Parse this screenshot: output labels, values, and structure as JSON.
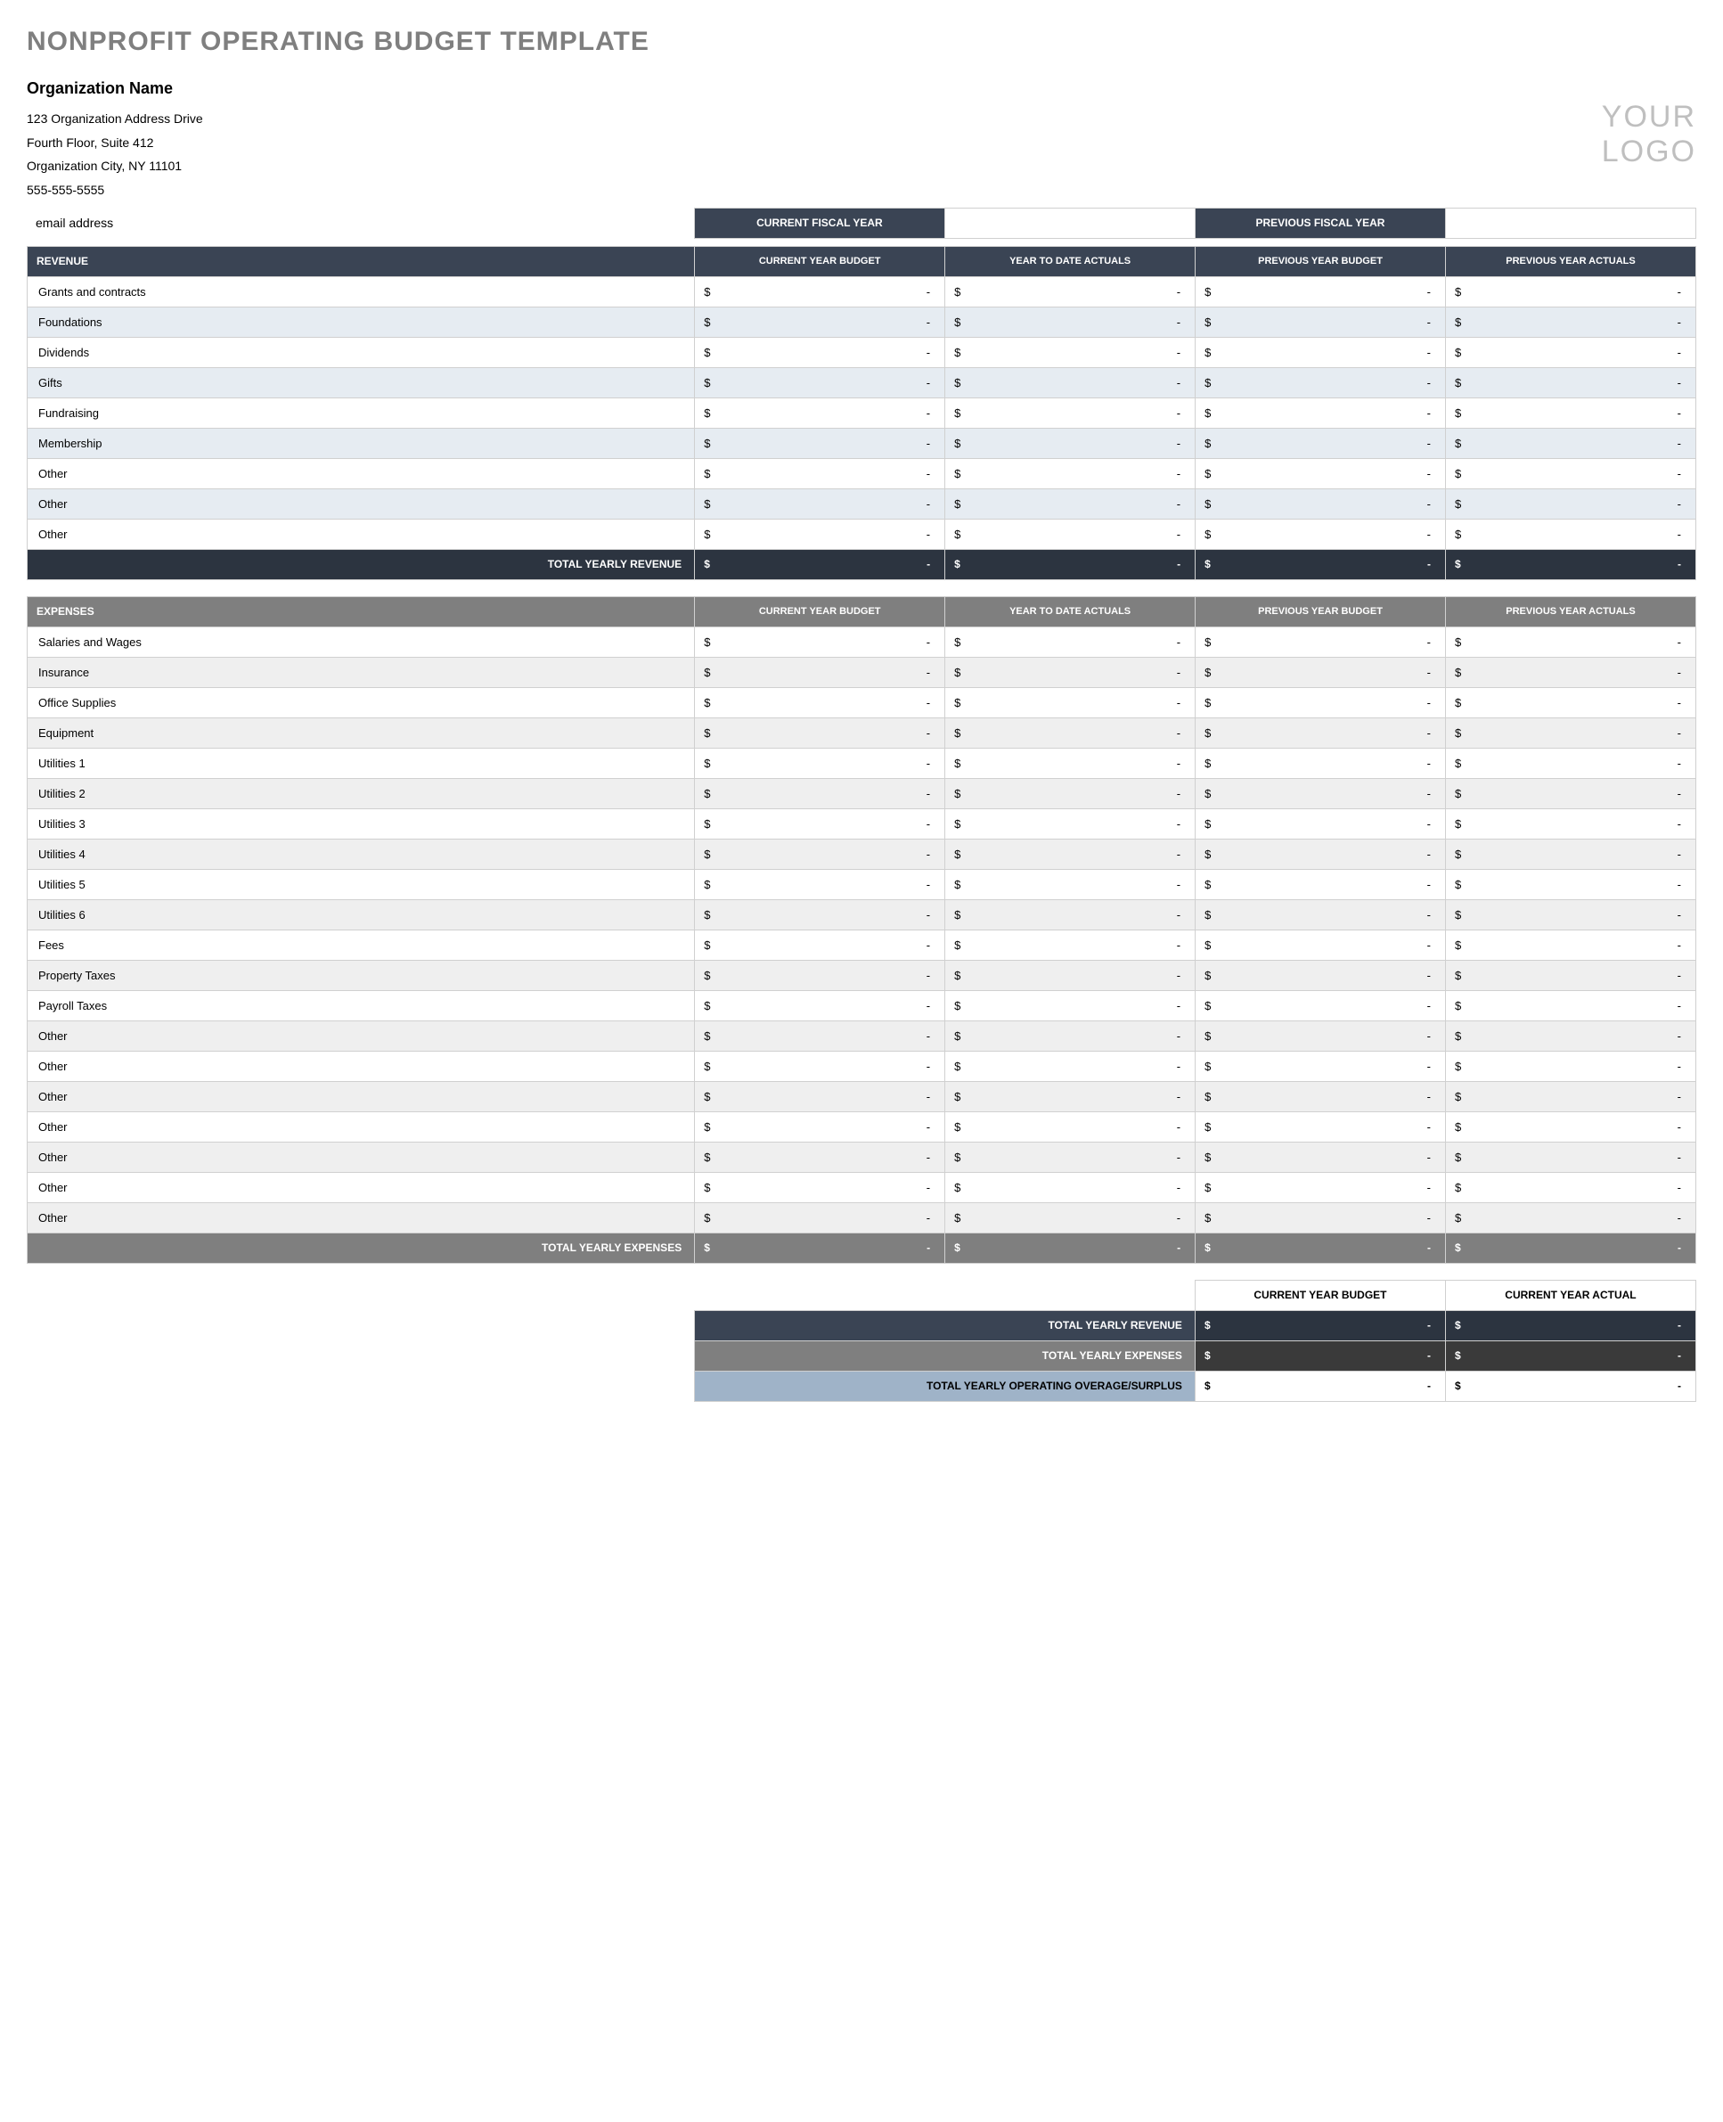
{
  "title": "NONPROFIT OPERATING BUDGET TEMPLATE",
  "org": {
    "name": "Organization Name",
    "addr1": "123 Organization Address Drive",
    "addr2": "Fourth Floor, Suite 412",
    "city": "Organization City, NY  11101",
    "phone": "555-555-5555",
    "email": "email address"
  },
  "logo": {
    "line1": "YOUR",
    "line2": "LOGO"
  },
  "fiscal": {
    "current_label": "CURRENT FISCAL YEAR",
    "current_value": "",
    "previous_label": "PREVIOUS FISCAL YEAR",
    "previous_value": ""
  },
  "columns": {
    "c1": "CURRENT YEAR BUDGET",
    "c2": "YEAR TO DATE ACTUALS",
    "c3": "PREVIOUS YEAR BUDGET",
    "c4": "PREVIOUS YEAR ACTUALS"
  },
  "currency_symbol": "$",
  "empty_value": "-",
  "revenue": {
    "header": "REVENUE",
    "header_bg": "#3a4454",
    "row_even_bg": "#e6ecf2",
    "row_odd_bg": "#ffffff",
    "rows": [
      {
        "label": "Grants and contracts",
        "c1": "-",
        "c2": "-",
        "c3": "-",
        "c4": "-"
      },
      {
        "label": "Foundations",
        "c1": "-",
        "c2": "-",
        "c3": "-",
        "c4": "-"
      },
      {
        "label": "Dividends",
        "c1": "-",
        "c2": "-",
        "c3": "-",
        "c4": "-"
      },
      {
        "label": "Gifts",
        "c1": "-",
        "c2": "-",
        "c3": "-",
        "c4": "-"
      },
      {
        "label": "Fundraising",
        "c1": "-",
        "c2": "-",
        "c3": "-",
        "c4": "-"
      },
      {
        "label": "Membership",
        "c1": "-",
        "c2": "-",
        "c3": "-",
        "c4": "-"
      },
      {
        "label": "Other",
        "c1": "-",
        "c2": "-",
        "c3": "-",
        "c4": "-"
      },
      {
        "label": "Other",
        "c1": "-",
        "c2": "-",
        "c3": "-",
        "c4": "-"
      },
      {
        "label": "Other",
        "c1": "-",
        "c2": "-",
        "c3": "-",
        "c4": "-"
      }
    ],
    "total_label": "TOTAL YEARLY REVENUE",
    "total_bg": "#2c3440",
    "total": {
      "c1": "-",
      "c2": "-",
      "c3": "-",
      "c4": "-"
    }
  },
  "expenses": {
    "header": "EXPENSES",
    "header_bg": "#7f7f7f",
    "row_even_bg": "#efefef",
    "row_odd_bg": "#ffffff",
    "rows": [
      {
        "label": "Salaries and Wages",
        "c1": "-",
        "c2": "-",
        "c3": "-",
        "c4": "-"
      },
      {
        "label": "Insurance",
        "c1": "-",
        "c2": "-",
        "c3": "-",
        "c4": "-"
      },
      {
        "label": "Office Supplies",
        "c1": "-",
        "c2": "-",
        "c3": "-",
        "c4": "-"
      },
      {
        "label": "Equipment",
        "c1": "-",
        "c2": "-",
        "c3": "-",
        "c4": "-"
      },
      {
        "label": "Utilities 1",
        "c1": "-",
        "c2": "-",
        "c3": "-",
        "c4": "-"
      },
      {
        "label": "Utilities 2",
        "c1": "-",
        "c2": "-",
        "c3": "-",
        "c4": "-"
      },
      {
        "label": "Utilities 3",
        "c1": "-",
        "c2": "-",
        "c3": "-",
        "c4": "-"
      },
      {
        "label": "Utilities 4",
        "c1": "-",
        "c2": "-",
        "c3": "-",
        "c4": "-"
      },
      {
        "label": "Utilities 5",
        "c1": "-",
        "c2": "-",
        "c3": "-",
        "c4": "-"
      },
      {
        "label": "Utilities 6",
        "c1": "-",
        "c2": "-",
        "c3": "-",
        "c4": "-"
      },
      {
        "label": "Fees",
        "c1": "-",
        "c2": "-",
        "c3": "-",
        "c4": "-"
      },
      {
        "label": "Property Taxes",
        "c1": "-",
        "c2": "-",
        "c3": "-",
        "c4": "-"
      },
      {
        "label": "Payroll Taxes",
        "c1": "-",
        "c2": "-",
        "c3": "-",
        "c4": "-"
      },
      {
        "label": "Other",
        "c1": "-",
        "c2": "-",
        "c3": "-",
        "c4": "-"
      },
      {
        "label": "Other",
        "c1": "-",
        "c2": "-",
        "c3": "-",
        "c4": "-"
      },
      {
        "label": "Other",
        "c1": "-",
        "c2": "-",
        "c3": "-",
        "c4": "-"
      },
      {
        "label": "Other",
        "c1": "-",
        "c2": "-",
        "c3": "-",
        "c4": "-"
      },
      {
        "label": "Other",
        "c1": "-",
        "c2": "-",
        "c3": "-",
        "c4": "-"
      },
      {
        "label": "Other",
        "c1": "-",
        "c2": "-",
        "c3": "-",
        "c4": "-"
      },
      {
        "label": "Other",
        "c1": "-",
        "c2": "-",
        "c3": "-",
        "c4": "-"
      }
    ],
    "total_label": "TOTAL YEARLY EXPENSES",
    "total_bg": "#7f7f7f",
    "total": {
      "c1": "-",
      "c2": "-",
      "c3": "-",
      "c4": "-"
    }
  },
  "summary": {
    "col1": "CURRENT YEAR BUDGET",
    "col2": "CURRENT YEAR ACTUAL",
    "rows": [
      {
        "key": "rev",
        "label": "TOTAL YEARLY REVENUE",
        "label_bg": "#3a4454",
        "cell_bg": "#2c3440",
        "text_color": "#ffffff",
        "c1": "-",
        "c2": "-"
      },
      {
        "key": "exp",
        "label": "TOTAL YEARLY EXPENSES",
        "label_bg": "#7f7f7f",
        "cell_bg": "#3a3a3a",
        "text_color": "#ffffff",
        "c1": "-",
        "c2": "-"
      },
      {
        "key": "net",
        "label": "TOTAL YEARLY OPERATING OVERAGE/SURPLUS",
        "label_bg": "#9fb3c8",
        "cell_bg": "#ffffff",
        "text_color": "#000000",
        "c1": "-",
        "c2": "-"
      }
    ]
  },
  "colors": {
    "title_text": "#7f7f7f",
    "border": "#d0d0d0",
    "navy": "#3a4454",
    "navy_dark": "#2c3440",
    "gray": "#7f7f7f",
    "gray_dark": "#3a3a3a",
    "slate_blue": "#9fb3c8",
    "logo_text": "#bfbfbf"
  }
}
